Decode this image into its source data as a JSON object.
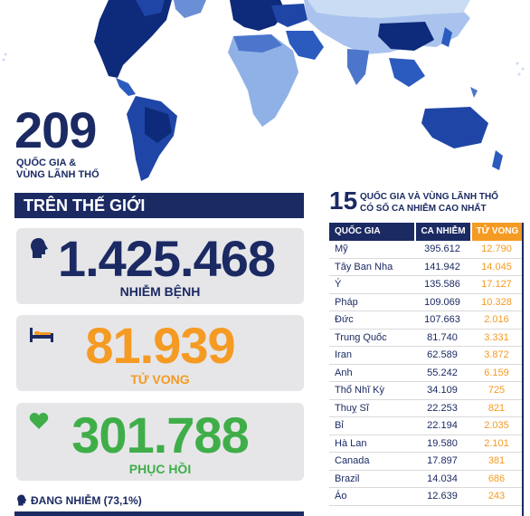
{
  "headline": {
    "count": "209",
    "subtitle_line1": "QUỐC GIA &",
    "subtitle_line2": "VÙNG LÃNH THỔ"
  },
  "world": {
    "title": "TRÊN THẾ GIỚI",
    "infected": {
      "value": "1.425.468",
      "label": "NHIỄM BỆNH",
      "icon": "head-icon",
      "color": "#1b2a63"
    },
    "deaths": {
      "value": "81.939",
      "label": "TỬ VONG",
      "icon": "bed-icon",
      "color": "#f59a23"
    },
    "recovered": {
      "value": "301.788",
      "label": "PHỤC HỒI",
      "icon": "heart-icon",
      "color": "#3fae49"
    },
    "active": {
      "label": "ĐANG NHIỄM (73,1%)"
    }
  },
  "top15": {
    "number": "15",
    "title_line1": "QUỐC GIA VÀ VÙNG LÃNH THỔ",
    "title_line2": "CÓ SỐ CA NHIỄM CAO NHẤT",
    "headers": [
      "QUỐC GIA",
      "CA NHIỄM",
      "TỬ VONG"
    ],
    "rows": [
      [
        "Mỹ",
        "395.612",
        "12.790"
      ],
      [
        "Tây Ban Nha",
        "141.942",
        "14.045"
      ],
      [
        "Ý",
        "135.586",
        "17.127"
      ],
      [
        "Pháp",
        "109.069",
        "10.328"
      ],
      [
        "Đức",
        "107.663",
        "2.016"
      ],
      [
        "Trung Quốc",
        "81.740",
        "3.331"
      ],
      [
        "Iran",
        "62.589",
        "3.872"
      ],
      [
        "Anh",
        "55.242",
        "6.159"
      ],
      [
        "Thổ Nhĩ Kỳ",
        "34.109",
        "725"
      ],
      [
        "Thuỵ Sĩ",
        "22.253",
        "821"
      ],
      [
        "Bỉ",
        "22.194",
        "2.035"
      ],
      [
        "Hà Lan",
        "19.580",
        "2.101"
      ],
      [
        "Canada",
        "17.897",
        "381"
      ],
      [
        "Brazil",
        "14.034",
        "686"
      ],
      [
        "Áo",
        "12.639",
        "243"
      ]
    ]
  },
  "colors": {
    "navy": "#1b2a63",
    "orange": "#f59a23",
    "green": "#3fae49",
    "map_light": "#c9dcf3",
    "map_dark": "#0e2a7a"
  }
}
